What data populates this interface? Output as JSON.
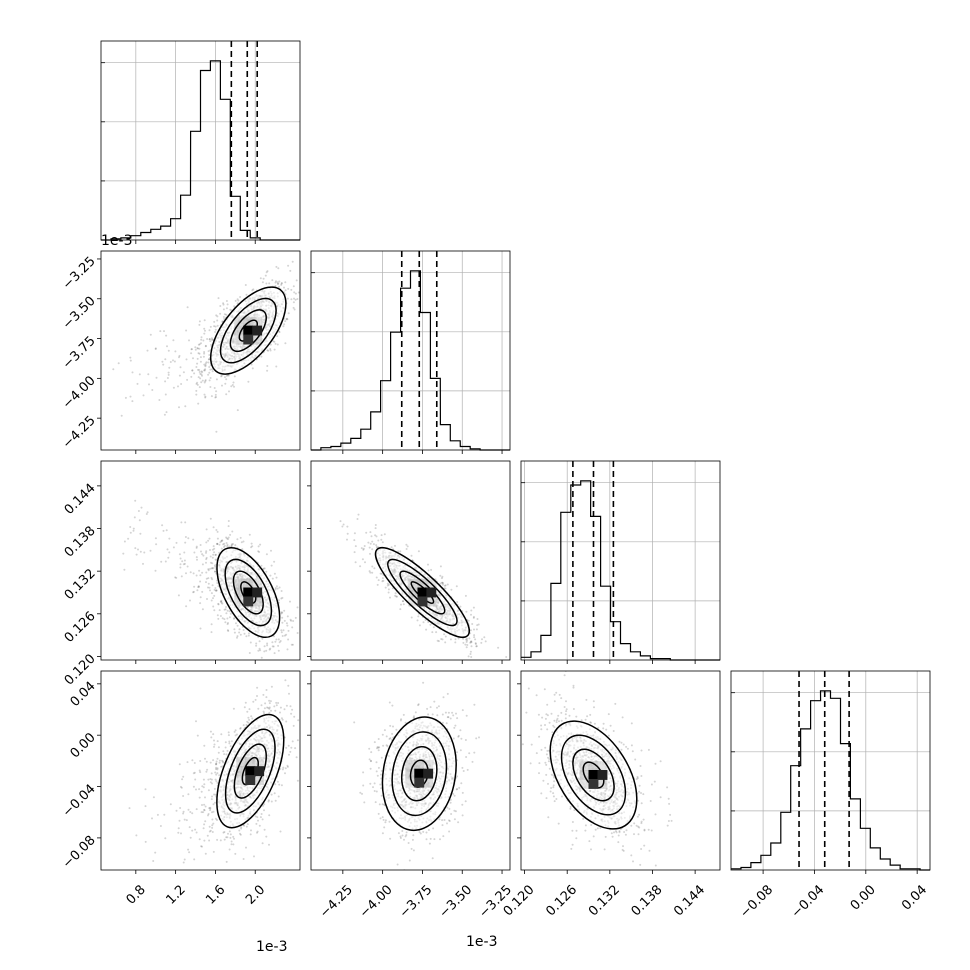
{
  "chart_data": {
    "type": "corner",
    "grid": true,
    "colors": {
      "axes": "#000000",
      "grid": "#b0b0b0",
      "hist": "#000000",
      "scatter": "#555555",
      "quantile": "#000000"
    },
    "parameters": [
      {
        "name": "",
        "range": [
          0.00045,
          0.00245
        ],
        "ticks": [
          0.0008,
          0.0012,
          0.0016,
          0.002
        ],
        "tick_labels": [
          "0.8",
          "1.2",
          "1.6",
          "2.0"
        ],
        "offset_label": "1e-3",
        "mean": 0.0019,
        "sigma_x": 0.00015,
        "quantiles": [
          0.00176,
          0.00192,
          0.00202
        ]
      },
      {
        "name": "",
        "range": [
          -0.00445,
          -0.0032
        ],
        "ticks": [
          -0.00425,
          -0.004,
          -0.00375,
          -0.0035,
          -0.00325
        ],
        "tick_labels": [
          "−4.25",
          "−4.00",
          "−3.75",
          "−3.50",
          "−3.25"
        ],
        "offset_label": "1e-3",
        "mean": -0.00377,
        "quantiles": [
          -0.00388,
          -0.00377,
          -0.00366
        ]
      },
      {
        "name": "",
        "range": [
          0.1195,
          0.1475
        ],
        "ticks": [
          0.12,
          0.126,
          0.132,
          0.138,
          0.144
        ],
        "tick_labels": [
          "0.120",
          "0.126",
          "0.132",
          "0.138",
          "0.144"
        ],
        "offset_label": "",
        "mean": 0.1297,
        "quantiles": [
          0.1268,
          0.1297,
          0.1325
        ]
      },
      {
        "name": "",
        "range": [
          -0.105,
          0.05
        ],
        "ticks": [
          -0.08,
          -0.04,
          0.0,
          0.04
        ],
        "tick_labels": [
          "−0.08",
          "−0.04",
          "0.00",
          "0.04"
        ],
        "offset_label": "",
        "mean": -0.032,
        "quantiles": [
          -0.052,
          -0.032,
          -0.013
        ]
      }
    ],
    "y_tick_labels_rows": {
      "1": [
        "−3.25",
        "−3.50",
        "−3.75",
        "−4.00",
        "−4.25"
      ],
      "2": [
        "0.144",
        "0.138",
        "0.132",
        "0.126",
        "0.120"
      ],
      "3": [
        "0.04",
        "0.00",
        "−0.04",
        "−0.08"
      ]
    },
    "histograms": [
      {
        "edges_count": 20,
        "counts": [
          0,
          1,
          2,
          4,
          7,
          10,
          13,
          20,
          42,
          102,
          159,
          168,
          132,
          41,
          9,
          2,
          0,
          0,
          0,
          0
        ]
      },
      {
        "edges_count": 20,
        "counts": [
          0,
          2,
          3,
          6,
          10,
          18,
          33,
          60,
          102,
          140,
          155,
          119,
          62,
          22,
          8,
          3,
          1,
          0,
          0,
          0
        ]
      },
      {
        "edges_count": 20,
        "counts": [
          2,
          6,
          18,
          56,
          108,
          128,
          131,
          105,
          54,
          28,
          12,
          6,
          3,
          1,
          1,
          0,
          0,
          0,
          0,
          0
        ]
      },
      {
        "edges_count": 20,
        "counts": [
          1,
          2,
          6,
          12,
          22,
          47,
          85,
          115,
          138,
          146,
          140,
          103,
          58,
          34,
          18,
          9,
          4,
          1,
          1,
          0
        ]
      }
    ],
    "pairs": [
      {
        "x": 0,
        "y": 1,
        "center": [
          0.00193,
          -0.0037
        ],
        "sx": 0.00018,
        "sy": 0.00013,
        "rho": 0.62
      },
      {
        "x": 0,
        "y": 2,
        "center": [
          0.00193,
          0.129
        ],
        "sx": 0.00015,
        "sy": 0.003,
        "rho": -0.55
      },
      {
        "x": 0,
        "y": 3,
        "center": [
          0.00195,
          -0.028
        ],
        "sx": 0.00016,
        "sy": 0.021,
        "rho": 0.55
      },
      {
        "x": 1,
        "y": 2,
        "center": [
          -0.00375,
          0.129
        ],
        "sx": 0.00014,
        "sy": 0.003,
        "rho": -0.86
      },
      {
        "x": 1,
        "y": 3,
        "center": [
          -0.00377,
          -0.03
        ],
        "sx": 0.00011,
        "sy": 0.021,
        "rho": 0.15
      },
      {
        "x": 2,
        "y": 3,
        "center": [
          0.1297,
          -0.031
        ],
        "sx": 0.0029,
        "sy": 0.02,
        "rho": -0.45
      }
    ]
  }
}
